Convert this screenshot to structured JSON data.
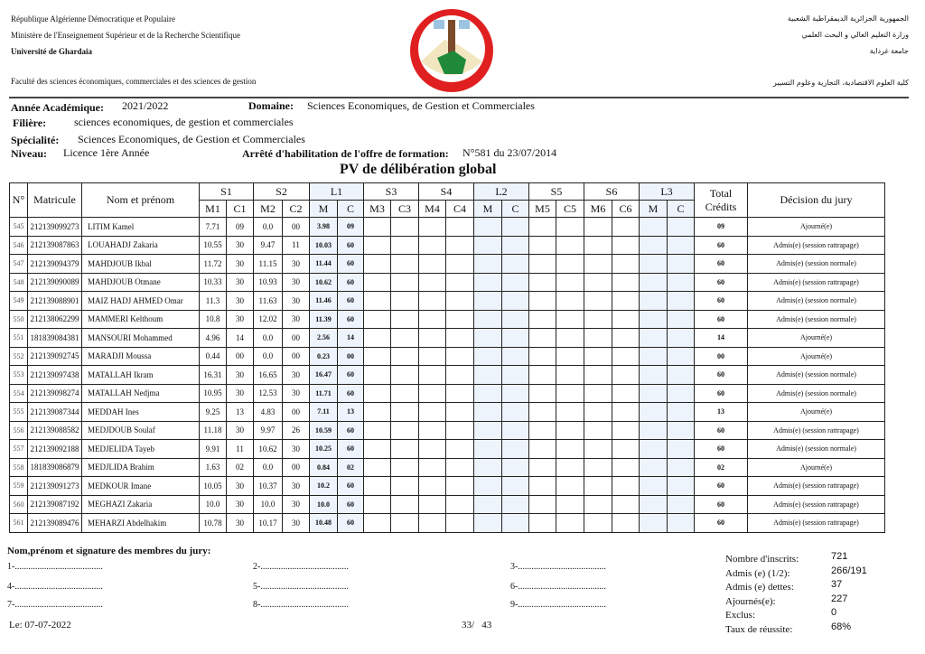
{
  "header": {
    "fr": [
      "République Algérienne Démocratique et Populaire",
      "Ministère de l'Enseignement Supérieur et de la Recherche Scientifique",
      "Université de Ghardaia"
    ],
    "faculty_fr": "Faculté des sciences économiques, commerciales et des sciences de gestion",
    "ar": [
      "الجمهورية الجزائرية الديمقراطية الشعبية",
      "وزارة التعليم العالي و البحث العلمي",
      "جامعة غرداية"
    ],
    "faculty_ar": "كلية العلوم الاقتصادية، التجارية وعلوم التسيير",
    "logo_text": "Université de Ghardaia"
  },
  "info": {
    "annee_label": "Année Académique:",
    "annee": "2021/2022",
    "domaine_label": "Domaine:",
    "domaine": "Sciences Economiques, de Gestion et Commerciales",
    "filiere_label": "Filière:",
    "filiere": "sciences economiques, de gestion et commerciales",
    "specialite_label": "Spécialité:",
    "specialite": "Sciences Economiques, de Gestion et Commerciales",
    "niveau_label": "Niveau:",
    "niveau": "Licence 1ère Année",
    "arrete_label": "Arrêté d'habilitation de l'offre de formation:",
    "arrete": "N°581  du  23/07/2014"
  },
  "title": "PV de délibération global",
  "table": {
    "h_no": "N°",
    "h_mat": "Matricule",
    "h_nom": "Nom et prénom",
    "h_total": "Total Crédits",
    "h_dec": "Décision du jury",
    "groups": [
      "S1",
      "S2",
      "L1",
      "S3",
      "S4",
      "L2",
      "S5",
      "S6",
      "L3"
    ],
    "sub": [
      "M1",
      "C1",
      "M2",
      "C2",
      "M",
      "C",
      "M3",
      "C3",
      "M4",
      "C4",
      "M",
      "C",
      "M5",
      "C5",
      "M6",
      "C6",
      "M",
      "C"
    ],
    "rows": [
      [
        "545",
        "212139099273",
        "LITIM Kamel",
        "7.71",
        "09",
        "0.0",
        "00",
        "3.98",
        "09",
        "09",
        "Ajourné(e)"
      ],
      [
        "546",
        "212139087863",
        "LOUAHADJ Zakaria",
        "10.55",
        "30",
        "9.47",
        "11",
        "10.03",
        "60",
        "60",
        "Admis(e) (session rattrapage)"
      ],
      [
        "547",
        "212139094379",
        "MAHDJOUB Ikbal",
        "11.72",
        "30",
        "11.15",
        "30",
        "11.44",
        "60",
        "60",
        "Admis(e) (session normale)"
      ],
      [
        "548",
        "212139090089",
        "MAHDJOUB Otmane",
        "10.33",
        "30",
        "10.93",
        "30",
        "10.62",
        "60",
        "60",
        "Admis(e) (session rattrapage)"
      ],
      [
        "549",
        "212139088901",
        "MAIZ HADJ AHMED Omar",
        "11.3",
        "30",
        "11.63",
        "30",
        "11.46",
        "60",
        "60",
        "Admis(e) (session normale)"
      ],
      [
        "550",
        "212138062299",
        "MAMMERI Kelthoum",
        "10.8",
        "30",
        "12.02",
        "30",
        "11.39",
        "60",
        "60",
        "Admis(e) (session normale)"
      ],
      [
        "551",
        "181839084381",
        "MANSOURI Mohammed",
        "4.96",
        "14",
        "0.0",
        "00",
        "2.56",
        "14",
        "14",
        "Ajourné(e)"
      ],
      [
        "552",
        "212139092745",
        "MARADJI Moussa",
        "0.44",
        "00",
        "0.0",
        "00",
        "0.23",
        "00",
        "00",
        "Ajourné(e)"
      ],
      [
        "553",
        "212139097438",
        "MATALLAH Ikram",
        "16.31",
        "30",
        "16.65",
        "30",
        "16.47",
        "60",
        "60",
        "Admis(e) (session normale)"
      ],
      [
        "554",
        "212139098274",
        "MATALLAH Nedjma",
        "10.95",
        "30",
        "12.53",
        "30",
        "11.71",
        "60",
        "60",
        "Admis(e) (session normale)"
      ],
      [
        "555",
        "212139087344",
        "MEDDAH Ines",
        "9.25",
        "13",
        "4.83",
        "00",
        "7.11",
        "13",
        "13",
        "Ajourné(e)"
      ],
      [
        "556",
        "212139088582",
        "MEDJDOUB Soulaf",
        "11.18",
        "30",
        "9.97",
        "26",
        "10.59",
        "60",
        "60",
        "Admis(e) (session rattrapage)"
      ],
      [
        "557",
        "212139092188",
        "MEDJELIDA Tayeb",
        "9.91",
        "11",
        "10.62",
        "30",
        "10.25",
        "60",
        "60",
        "Admis(e) (session normale)"
      ],
      [
        "558",
        "181839086879",
        "MEDJLIDA Brahim",
        "1.63",
        "02",
        "0.0",
        "00",
        "0.84",
        "02",
        "02",
        "Ajourné(e)"
      ],
      [
        "559",
        "212139091273",
        "MEDKOUR Imane",
        "10.05",
        "30",
        "10.37",
        "30",
        "10.2",
        "60",
        "60",
        "Admis(e) (session rattrapage)"
      ],
      [
        "560",
        "212139087192",
        "MEGHAZI Zakaria",
        "10.0",
        "30",
        "10.0",
        "30",
        "10.0",
        "60",
        "60",
        "Admis(e) (session rattrapage)"
      ],
      [
        "561",
        "212139089476",
        "MEHARZI Abdelhakim",
        "10.78",
        "30",
        "10.17",
        "30",
        "10.48",
        "60",
        "60",
        "Admis(e) (session rattrapage)"
      ]
    ]
  },
  "footer": {
    "jury_label": "Nom,prénom et signature des membres du jury:",
    "sigs": [
      "1-.......................................",
      "2-.......................................",
      "3-.......................................",
      "4-.......................................",
      "5-.......................................",
      "6-.......................................",
      "7-.......................................",
      "8-.......................................",
      "9-......................................."
    ],
    "date": "Le: 07-07-2022",
    "page": "33/   43",
    "stats": [
      [
        "Nombre d'inscrits:",
        "721"
      ],
      [
        "Admis (e) (1/2):",
        "266/191"
      ],
      [
        "Admis (e) dettes:",
        "37"
      ],
      [
        "Ajournés(e):",
        "227"
      ],
      [
        "Exclus:",
        "0"
      ],
      [
        "Taux de réussite:",
        "68%"
      ]
    ]
  }
}
